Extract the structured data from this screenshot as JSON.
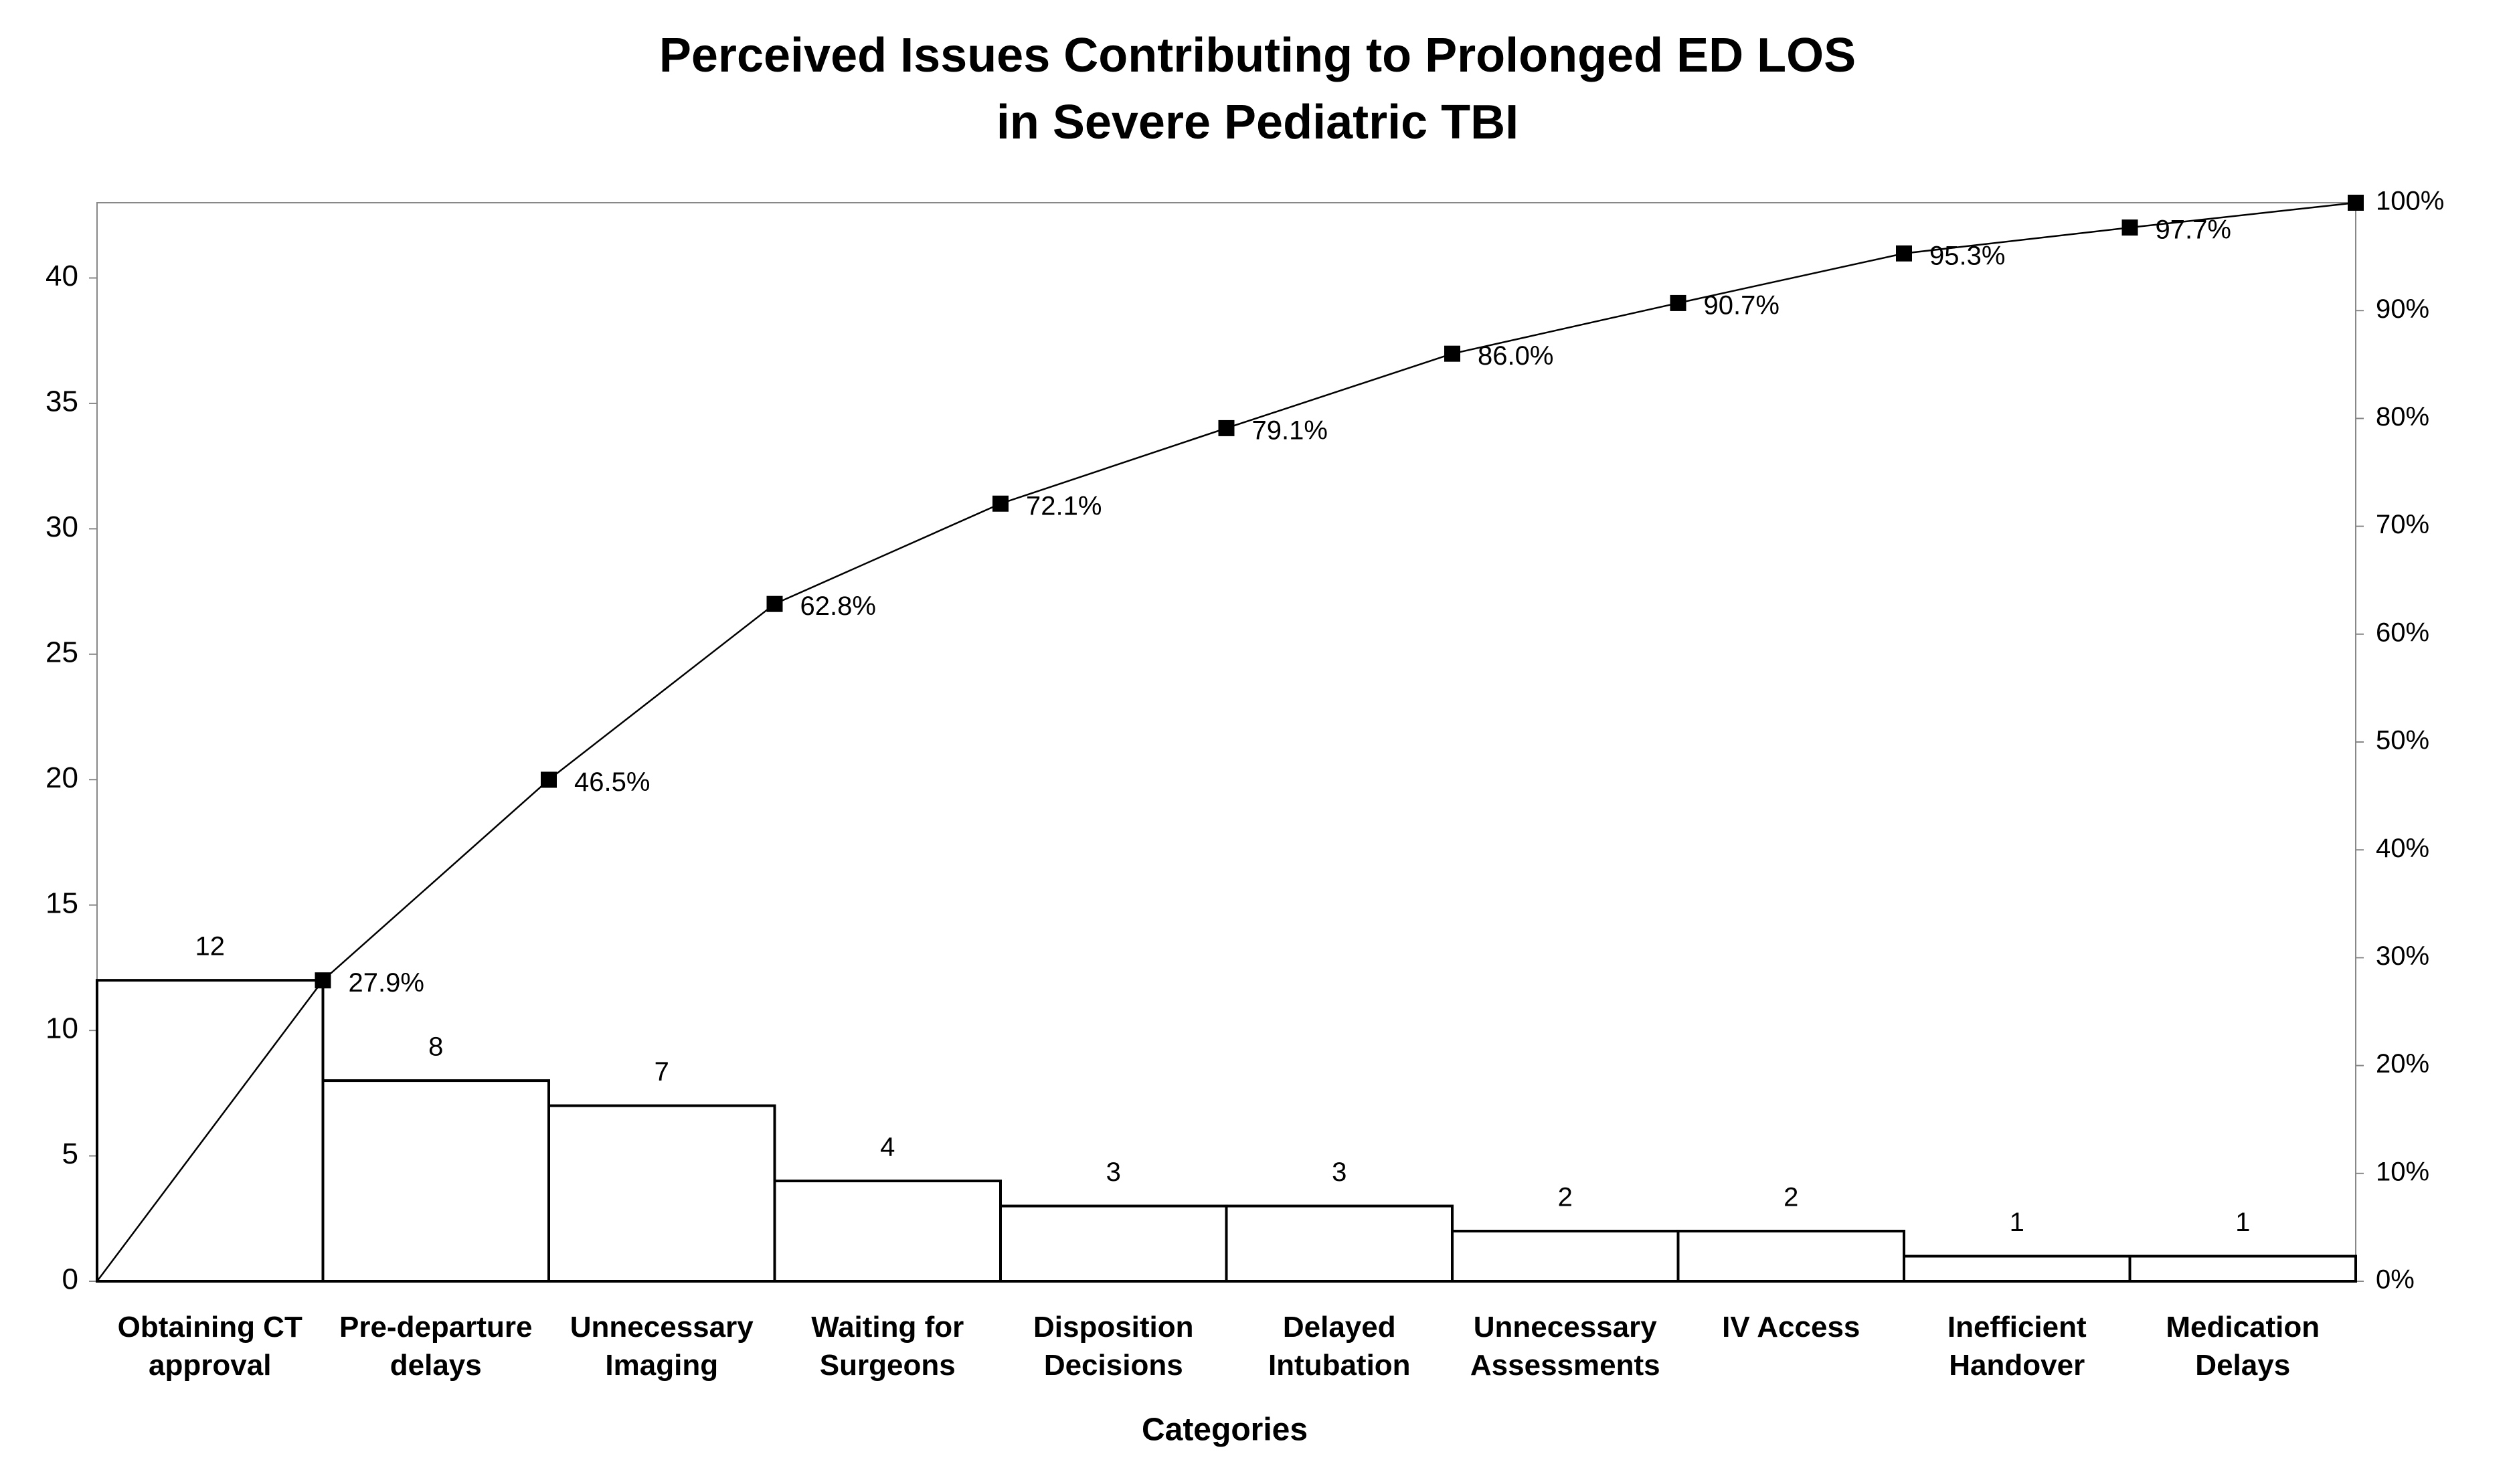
{
  "chart_data": {
    "type": "pareto",
    "title": [
      "Perceived Issues Contributing to Prolonged ED LOS",
      "in Severe Pediatric TBI"
    ],
    "x_label": "Categories",
    "categories": [
      "Obtaining CT approval",
      "Pre-departure delays",
      "Unnecessary Imaging",
      "Waiting for Surgeons",
      "Disposition Decisions",
      "Delayed Intubation",
      "Unnecessary Assessments",
      "IV Access",
      "Inefficient Handover",
      "Medication Delays"
    ],
    "series": [
      {
        "name": "Count",
        "color": "#ffffff",
        "values": [
          12,
          8,
          7,
          4,
          3,
          3,
          2,
          2,
          1,
          1
        ]
      },
      {
        "name": "Cumulative %",
        "color": "#000000",
        "axis": "y2",
        "values": [
          27.9,
          46.5,
          62.8,
          72.1,
          79.1,
          86.0,
          90.7,
          95.3,
          97.7,
          100
        ],
        "value_labels": [
          "27.9%",
          "46.5%",
          "62.8%",
          "72.1%",
          "79.1%",
          "86.0%",
          "90.7%",
          "95.3%",
          "97.7%",
          null
        ]
      }
    ],
    "ylim": [
      0,
      43
    ],
    "yticks": [
      0,
      5,
      10,
      15,
      20,
      25,
      30,
      35,
      40
    ],
    "y2lim": [
      0,
      100
    ],
    "y2ticks": [
      {
        "value": 0,
        "label": "0%"
      },
      {
        "value": 10,
        "label": "10%"
      },
      {
        "value": 20,
        "label": "20%"
      },
      {
        "value": 30,
        "label": "30%"
      },
      {
        "value": 40,
        "label": "40%"
      },
      {
        "value": 50,
        "label": "50%"
      },
      {
        "value": 60,
        "label": "60%"
      },
      {
        "value": 70,
        "label": "70%"
      },
      {
        "value": 80,
        "label": "80%"
      },
      {
        "value": 90,
        "label": "90%"
      },
      {
        "value": 100,
        "label": "100%"
      }
    ],
    "grid": false
  }
}
